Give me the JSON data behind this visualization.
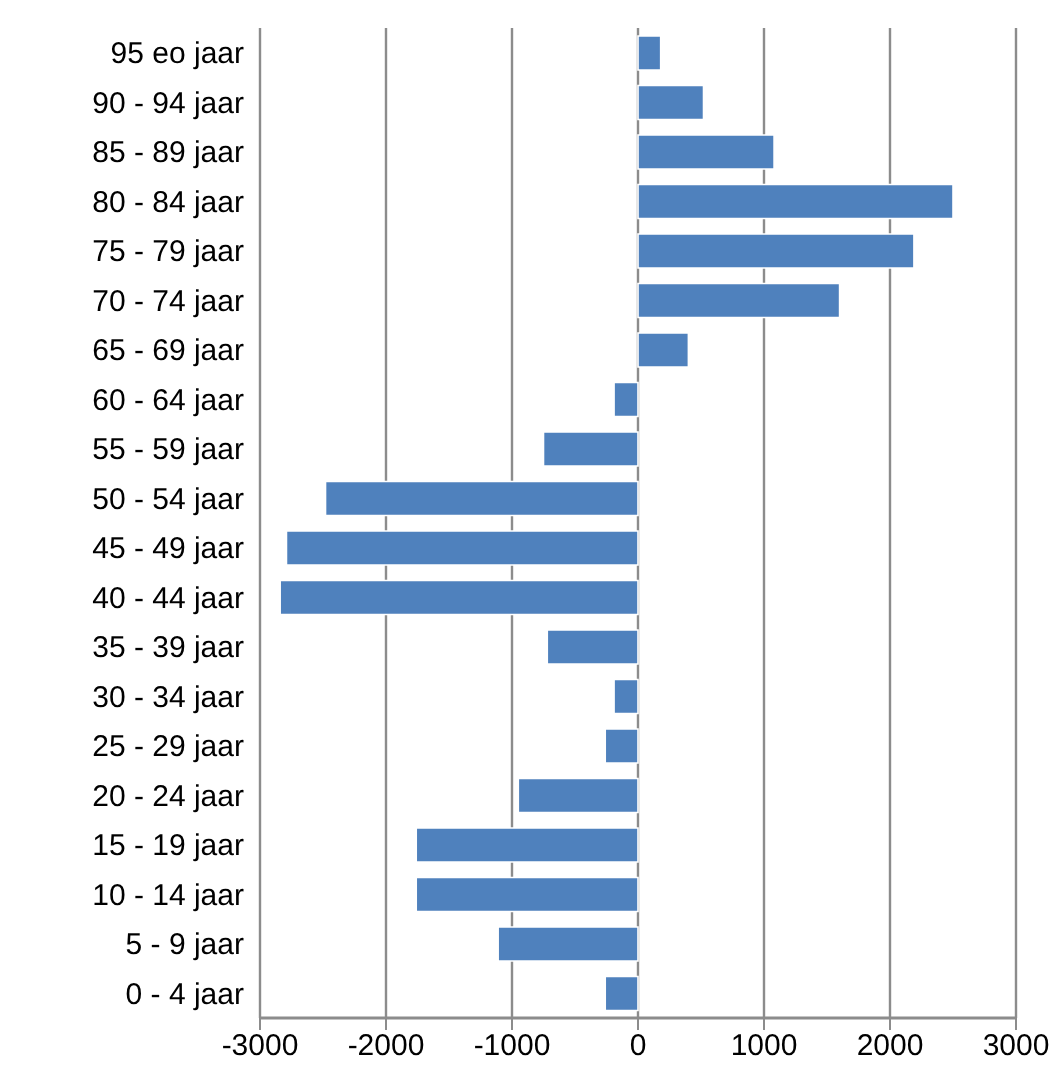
{
  "chart_data": {
    "type": "bar",
    "orientation": "horizontal",
    "categories": [
      "95 eo jaar",
      "90 - 94 jaar",
      "85 - 89 jaar",
      "80 - 84 jaar",
      "75 - 79 jaar",
      "70 - 74 jaar",
      "65 - 69 jaar",
      "60 - 64 jaar",
      "55 - 59 jaar",
      "50 - 54 jaar",
      "45 - 49 jaar",
      "40 - 44 jaar",
      "35 - 39 jaar",
      "30 - 34 jaar",
      "25 - 29 jaar",
      "20 - 24 jaar",
      "15 - 19 jaar",
      "10 - 14 jaar",
      "5 - 9 jaar",
      "0 - 4 jaar"
    ],
    "values": [
      180,
      520,
      1080,
      2500,
      2190,
      1600,
      400,
      -190,
      -750,
      -2480,
      -2790,
      -2840,
      -720,
      -190,
      -260,
      -950,
      -1760,
      -1760,
      -1110,
      -260
    ],
    "color": "#4f81bd",
    "xlim": [
      -3000,
      3000
    ],
    "xticks": [
      -3000,
      -2000,
      -1000,
      0,
      1000,
      2000,
      3000
    ],
    "grid": "x"
  }
}
